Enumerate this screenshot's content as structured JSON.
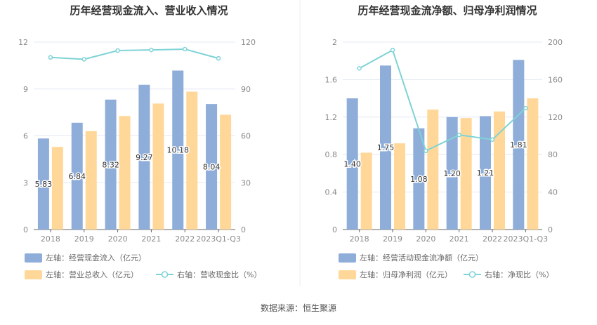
{
  "colors": {
    "bar1": "#8eadd9",
    "bar2": "#ffd899",
    "line": "#7fd3d6",
    "grid": "#e3e8f3",
    "axis": "#666666"
  },
  "source": "数据来源：恒生聚源",
  "chart_data": [
    {
      "type": "bar",
      "title": "历年经营现金流入、营业收入情况",
      "categories": [
        "2018",
        "2019",
        "2020",
        "2021",
        "2022",
        "2023Q1-Q3"
      ],
      "left_axis": {
        "ylim": [
          0,
          12
        ],
        "ticks": [
          "0",
          "3",
          "6",
          "9",
          "12"
        ]
      },
      "right_axis": {
        "ylim": [
          0,
          120
        ],
        "ticks": [
          "0",
          "30",
          "60",
          "90",
          "120"
        ]
      },
      "series": [
        {
          "name": "左轴：经营现金流入（亿元）",
          "type": "bar",
          "axis": "left",
          "values": [
            5.83,
            6.84,
            8.32,
            9.27,
            10.18,
            8.04
          ],
          "labels": [
            "5.83",
            "6.84",
            "8.32",
            "9.27",
            "10.18",
            "8.04"
          ]
        },
        {
          "name": "左轴：营业总收入（亿元）",
          "type": "bar",
          "axis": "left",
          "values": [
            5.29,
            6.3,
            7.27,
            8.07,
            8.83,
            7.35
          ]
        },
        {
          "name": "右轴：营收现金比（%）",
          "type": "line",
          "axis": "right",
          "values": [
            110.2,
            109.0,
            114.6,
            115.0,
            115.5,
            109.6
          ]
        }
      ],
      "legend": "bottom-left"
    },
    {
      "type": "bar",
      "title": "历年经营现金流净额、归母净利润情况",
      "categories": [
        "2018",
        "2019",
        "2020",
        "2021",
        "2022",
        "2023Q1-Q3"
      ],
      "left_axis": {
        "ylim": [
          0,
          2
        ],
        "ticks": [
          "0",
          "0.4",
          "0.8",
          "1.2",
          "1.6",
          "2"
        ]
      },
      "right_axis": {
        "ylim": [
          0,
          200
        ],
        "ticks": [
          "0",
          "40",
          "80",
          "120",
          "160",
          "200"
        ]
      },
      "series": [
        {
          "name": "左轴：经营活动现金流净额（亿元）",
          "type": "bar",
          "axis": "left",
          "values": [
            1.4,
            1.75,
            1.08,
            1.2,
            1.21,
            1.81
          ],
          "labels": [
            "1.40",
            "1.75",
            "1.08",
            "1.20",
            "1.21",
            "1.81"
          ]
        },
        {
          "name": "左轴：归母净利润（亿元）",
          "type": "bar",
          "axis": "left",
          "values": [
            0.82,
            0.92,
            1.28,
            1.19,
            1.26,
            1.4
          ]
        },
        {
          "name": "右轴：净现比（%）",
          "type": "line",
          "axis": "right",
          "values": [
            172,
            191.5,
            84,
            101,
            96,
            129.5
          ]
        }
      ],
      "legend": "bottom-left"
    }
  ]
}
